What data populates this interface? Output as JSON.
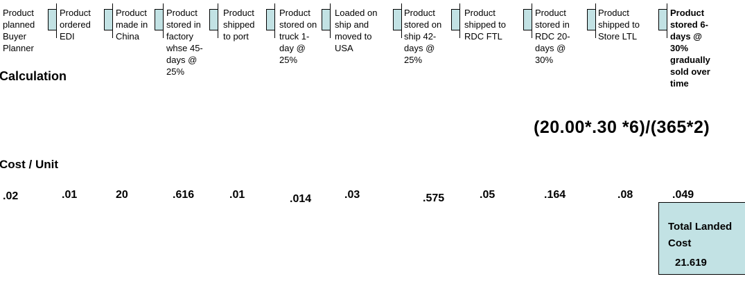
{
  "timeline": {
    "stages": [
      "Product\nplanned\nBuyer\nPlanner",
      "Product\nordered\nEDI",
      "Product\nmade in\nChina",
      "Product\nstored in\nfactory\nwhse 45-\ndays @\n25%",
      "Product\nshipped\nto port",
      "Product\nstored on\ntruck 1-\nday @\n25%",
      "Loaded on\nship and\nmoved to\nUSA",
      "Product\nstored on\nship 42-\ndays @\n25%",
      "Product\nshipped to\nRDC FTL",
      "Product\nstored in\nRDC 20-\ndays @\n30%",
      "Product\nshipped to\nStore LTL",
      "Product\nstored 6-\ndays @\n30%\ngradually\nsold over\ntime"
    ]
  },
  "calculation": {
    "label": "Calculation",
    "formula": "(20.00*.30 *6)/(365*2)"
  },
  "cost_row": {
    "label": "Cost / Unit",
    "values": [
      ".02",
      ".01",
      "20",
      ".616",
      ".01",
      ".014",
      ".03",
      ".575",
      ".05",
      ".164",
      ".08",
      ".049"
    ]
  },
  "total_box": {
    "title": "Total Landed\n Cost",
    "value": "21.619"
  },
  "colors": {
    "marker_fill": "#c2e2e4",
    "box_fill": "#c2e2e4",
    "border": "#000000"
  }
}
